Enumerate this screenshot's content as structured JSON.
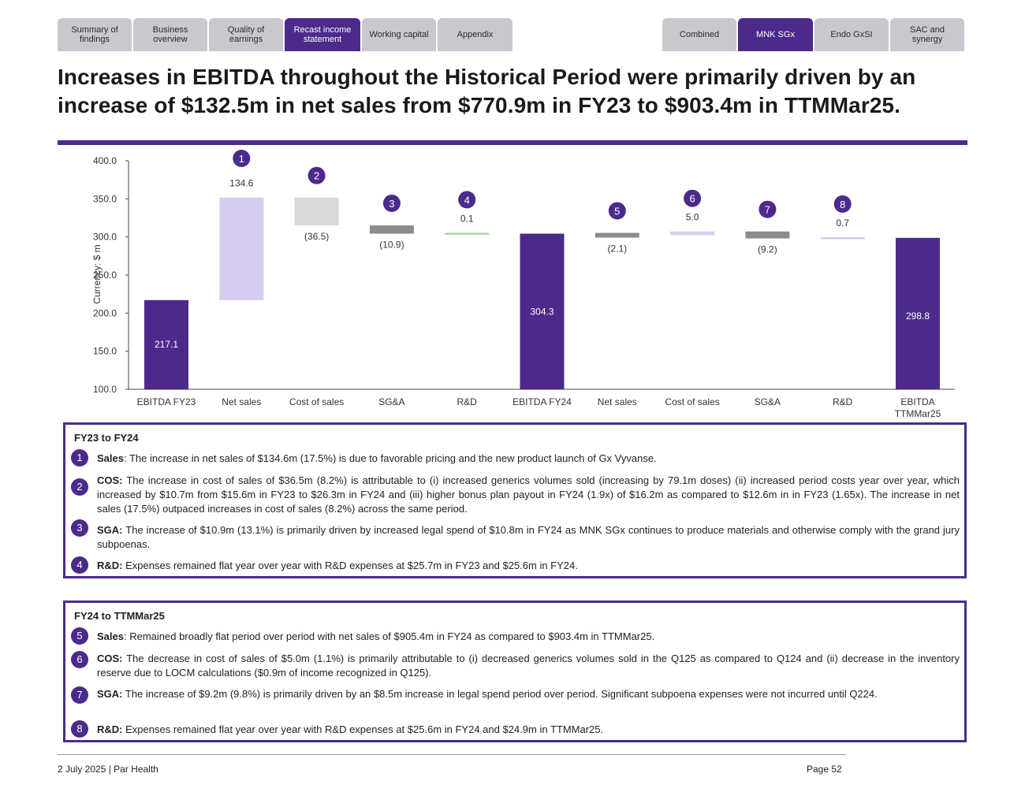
{
  "tabs_left": [
    "Summary of findings",
    "Business overview",
    "Quality of earnings",
    "Recast income statement",
    "Working capital",
    "Appendix"
  ],
  "tabs_right": [
    "Combined",
    "MNK SGx",
    "Endo GxSI",
    "SAC and synergy"
  ],
  "title": "Increases in EBITDA throughout the Historical Period were primarily driven by an increase of $132.5m in net sales from $770.9m in FY23 to $903.4m in TTMMar25.",
  "chart_data": {
    "type": "waterfall",
    "ylabel": "Currency: $ m",
    "ylim": [
      100,
      400
    ],
    "yticks": [
      "100.0",
      "150.0",
      "200.0",
      "250.0",
      "300.0",
      "350.0",
      "400.0"
    ],
    "colors": {
      "total": "#4b2a8c",
      "increase": "#d6cdf0",
      "decrease": "#d9d9d9",
      "decrease_dark": "#8c8c8c",
      "flat": "#a8d8a8"
    },
    "bars": [
      {
        "category": "EBITDA FY23",
        "kind": "total",
        "value": 217.1,
        "label": "217.1"
      },
      {
        "category": "Net sales",
        "kind": "increase",
        "value": 134.6,
        "label": "134.6",
        "marker": "1"
      },
      {
        "category": "Cost of sales",
        "kind": "decrease",
        "value": -36.5,
        "label": "(36.5)",
        "marker": "2"
      },
      {
        "category": "SG&A",
        "kind": "decrease_dark",
        "value": -10.9,
        "label": "(10.9)",
        "marker": "3"
      },
      {
        "category": "R&D",
        "kind": "flat",
        "value": 0.1,
        "label": "0.1",
        "marker": "4"
      },
      {
        "category": "EBITDA FY24",
        "kind": "total",
        "value": 304.3,
        "label": "304.3"
      },
      {
        "category": "Net sales",
        "kind": "decrease_dark",
        "value": -2.1,
        "label": "(2.1)",
        "marker": "5"
      },
      {
        "category": "Cost of sales",
        "kind": "increase",
        "value": 5.0,
        "label": "5.0",
        "marker": "6"
      },
      {
        "category": "SG&A",
        "kind": "decrease_dark",
        "value": -9.2,
        "label": "(9.2)",
        "marker": "7"
      },
      {
        "category": "R&D",
        "kind": "increase",
        "value": 0.7,
        "label": "0.7",
        "marker": "8"
      },
      {
        "category": "EBITDA TTMMar25",
        "kind": "total",
        "value": 298.8,
        "label": "298.8"
      }
    ]
  },
  "box1": {
    "title": "FY23 to FY24",
    "items": [
      {
        "num": "1",
        "head": "Sales",
        "text": ": The increase in net sales of $134.6m (17.5%) is due to favorable pricing and the new product launch of Gx Vyvanse."
      },
      {
        "num": "2",
        "head": "COS:",
        "text": " The increase in cost of sales of $36.5m (8.2%) is attributable to (i) increased generics volumes sold (increasing by 79.1m doses) (ii) increased period costs year over year, which increased by $10.7m from $15.6m in FY23 to $26.3m in FY24 and (iii) higher bonus plan payout in FY24 (1.9x) of $16.2m as compared to $12.6m in in FY23 (1.65x). The increase in net sales (17.5%) outpaced increases in cost of sales (8.2%) across the same period."
      },
      {
        "num": "3",
        "head": "SGA:",
        "text": " The increase of $10.9m (13.1%) is primarily driven by increased legal spend of $10.8m in FY24 as MNK SGx continues to produce materials and otherwise comply with the grand jury subpoenas."
      },
      {
        "num": "4",
        "head": "R&D:",
        "text": " Expenses remained flat year over year with R&D expenses at $25.7m in FY23 and $25.6m in FY24."
      }
    ]
  },
  "box2": {
    "title": "FY24 to TTMMar25",
    "items": [
      {
        "num": "5",
        "head": "Sales",
        "text": ": Remained broadly flat period over period with net sales of $905.4m in FY24 as compared to $903.4m in TTMMar25."
      },
      {
        "num": "6",
        "head": "COS:",
        "text": " The decrease in cost of sales of $5.0m (1.1%) is primarily attributable to (i) decreased generics volumes sold in the Q125 as compared to Q124 and (ii) decrease in the inventory reserve due to LOCM calculations ($0.9m of income recognized in Q125)."
      },
      {
        "num": "7",
        "head": "SGA:",
        "text": " The increase of $9.2m (9.8%) is primarily driven by an $8.5m increase in legal spend period over period. Significant subpoena expenses were not incurred until Q224."
      },
      {
        "num": "8",
        "head": "R&D:",
        "text": " Expenses remained flat year over year with R&D expenses at $25.6m in FY24 and $24.9m in TTMMar25."
      }
    ]
  },
  "footer": {
    "left": "2 July 2025 | Par Health",
    "right": "Page 52"
  }
}
